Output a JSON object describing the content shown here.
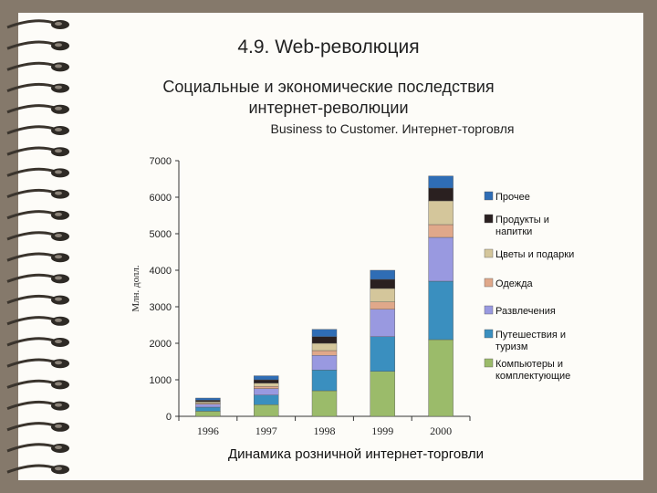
{
  "slide": {
    "title": "4.9. Web-революция",
    "subtitle_line1": "Социальные и экономические последствия",
    "subtitle_line2": "интернет-революции",
    "subsubtitle": "Business to Customer.  Интернет-торговля",
    "caption": "Динамика розничной интернет-торговли"
  },
  "chart_data": {
    "type": "bar",
    "stacked": true,
    "ylabel": "Млн. долл.",
    "xlabel": "",
    "ylim": [
      0,
      7000
    ],
    "yticks": [
      0,
      1000,
      2000,
      3000,
      4000,
      5000,
      6000,
      7000
    ],
    "grid": false,
    "legend_position": "right",
    "categories": [
      "1996",
      "1997",
      "1998",
      "1999",
      "2000"
    ],
    "series": [
      {
        "name": "Компьютеры и комплектующие",
        "color": "#9bbb6a",
        "values": [
          140,
          320,
          700,
          1230,
          2100
        ]
      },
      {
        "name": "Путешествия и туризм",
        "color": "#3a8fbf",
        "values": [
          110,
          260,
          570,
          950,
          1600
        ]
      },
      {
        "name": "Развлечения",
        "color": "#9999e0",
        "values": [
          80,
          180,
          400,
          750,
          1200
        ]
      },
      {
        "name": "Одежда",
        "color": "#e0a88a",
        "values": [
          30,
          60,
          130,
          200,
          350
        ]
      },
      {
        "name": "Цветы и подарки",
        "color": "#d4c69b",
        "values": [
          40,
          90,
          200,
          370,
          650
        ]
      },
      {
        "name": "Продукты и напитки",
        "color": "#2a2020",
        "values": [
          40,
          90,
          180,
          250,
          350
        ]
      },
      {
        "name": "Прочее",
        "color": "#2f6db5",
        "values": [
          60,
          110,
          200,
          250,
          330
        ]
      }
    ]
  }
}
